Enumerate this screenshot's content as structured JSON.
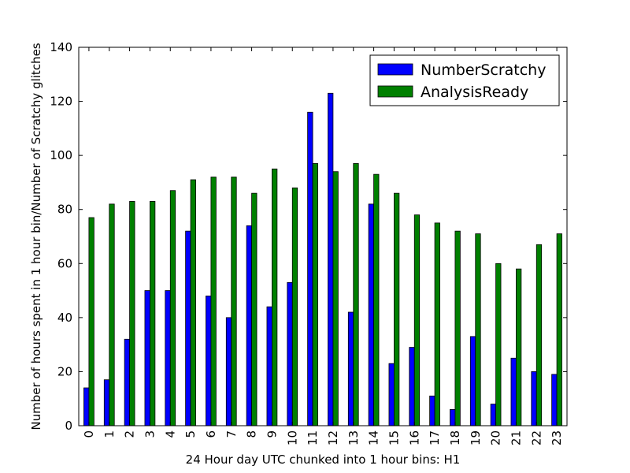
{
  "chart_data": {
    "type": "bar",
    "categories": [
      "0",
      "1",
      "2",
      "3",
      "4",
      "5",
      "6",
      "7",
      "8",
      "9",
      "10",
      "11",
      "12",
      "13",
      "14",
      "15",
      "16",
      "17",
      "18",
      "19",
      "20",
      "21",
      "22",
      "23"
    ],
    "series": [
      {
        "name": "NumberScratchy",
        "color": "#0000ff",
        "values": [
          14,
          17,
          32,
          50,
          50,
          72,
          48,
          40,
          74,
          44,
          53,
          116,
          123,
          42,
          82,
          23,
          29,
          11,
          6,
          33,
          8,
          25,
          20,
          19
        ]
      },
      {
        "name": "AnalysisReady",
        "color": "#008000",
        "values": [
          77,
          82,
          83,
          83,
          87,
          91,
          92,
          92,
          86,
          95,
          88,
          97,
          94,
          97,
          93,
          86,
          78,
          75,
          72,
          71,
          60,
          58,
          67,
          71
        ]
      }
    ],
    "xlabel": "24 Hour day UTC chunked into 1 hour bins: H1",
    "ylabel": "Number of hours spent in 1 hour bin/Number of Scratchy glitches",
    "ylim": [
      0,
      140
    ],
    "yticks": [
      0,
      20,
      40,
      60,
      80,
      100,
      120,
      140
    ],
    "grid": false,
    "legend_position": "top-right"
  }
}
